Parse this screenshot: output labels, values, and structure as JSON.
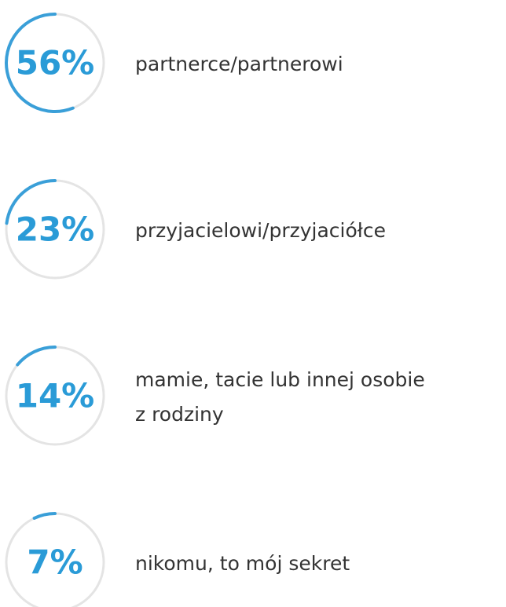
{
  "items": [
    {
      "value": 56,
      "value_label": "56%",
      "label_lines": [
        "partnerce/partnerowi"
      ]
    },
    {
      "value": 23,
      "value_label": "23%",
      "label_lines": [
        "przyjacielowi/przyjaciółce"
      ]
    },
    {
      "value": 14,
      "value_label": "14%",
      "label_lines": [
        "mamie, tacie lub innej osobie",
        "z rodziny"
      ]
    },
    {
      "value": 7,
      "value_label": "7%",
      "label_lines": [
        "nikomu, to mój sekret"
      ]
    }
  ]
}
